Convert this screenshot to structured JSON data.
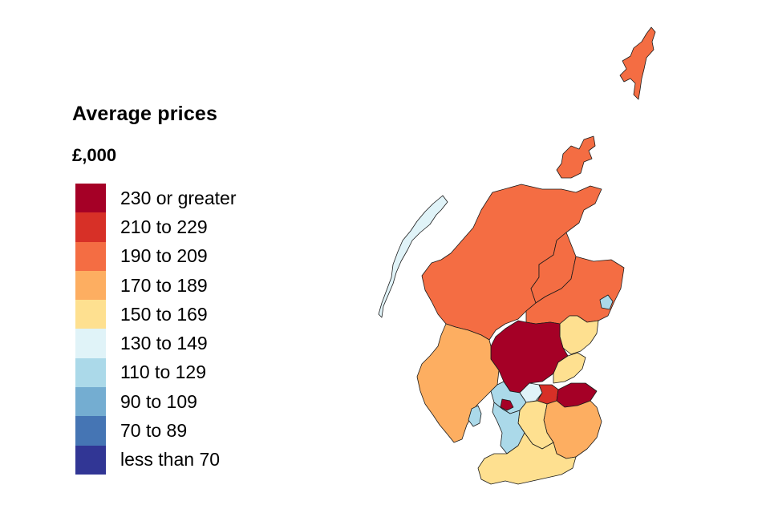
{
  "legend": {
    "title": "Average prices",
    "unit": "£,000",
    "bands": [
      {
        "label": "230 or greater",
        "color": "#a50026"
      },
      {
        "label": "210 to 229",
        "color": "#d73027"
      },
      {
        "label": "190 to 209",
        "color": "#f46d43"
      },
      {
        "label": "170 to 189",
        "color": "#fdae61"
      },
      {
        "label": "150 to 169",
        "color": "#fee090"
      },
      {
        "label": "130 to 149",
        "color": "#e0f3f8"
      },
      {
        "label": "110 to 129",
        "color": "#abd9e9"
      },
      {
        "label": "90 to 109",
        "color": "#74add1"
      },
      {
        "label": "70 to 89",
        "color": "#4575b4"
      },
      {
        "label": "less than 70",
        "color": "#313695"
      }
    ]
  },
  "map": {
    "regions": [
      {
        "name": "shetland",
        "band": "190 to 209"
      },
      {
        "name": "orkney",
        "band": "190 to 209"
      },
      {
        "name": "western-isles",
        "band": "130 to 149"
      },
      {
        "name": "highland",
        "band": "190 to 209"
      },
      {
        "name": "aberdeenshire",
        "band": "190 to 209"
      },
      {
        "name": "moray",
        "band": "190 to 209"
      },
      {
        "name": "aberdeen-city",
        "band": "110 to 129"
      },
      {
        "name": "argyll-and-bute",
        "band": "170 to 189"
      },
      {
        "name": "perth-and-kinross",
        "band": "230 or greater"
      },
      {
        "name": "angus",
        "band": "150 to 169"
      },
      {
        "name": "fife",
        "band": "150 to 169"
      },
      {
        "name": "falkirk",
        "band": "130 to 149"
      },
      {
        "name": "edinburgh",
        "band": "230 or greater"
      },
      {
        "name": "west-lothian",
        "band": "210 to 229"
      },
      {
        "name": "west-central-belt",
        "band": "110 to 129"
      },
      {
        "name": "east-renfrewshire",
        "band": "230 or greater"
      },
      {
        "name": "south-lanarkshire",
        "band": "150 to 169"
      },
      {
        "name": "scottish-borders",
        "band": "170 to 189"
      },
      {
        "name": "ayrshire",
        "band": "110 to 129"
      },
      {
        "name": "dumfries-and-galloway",
        "band": "150 to 169"
      },
      {
        "name": "arran",
        "band": "110 to 129"
      }
    ]
  }
}
